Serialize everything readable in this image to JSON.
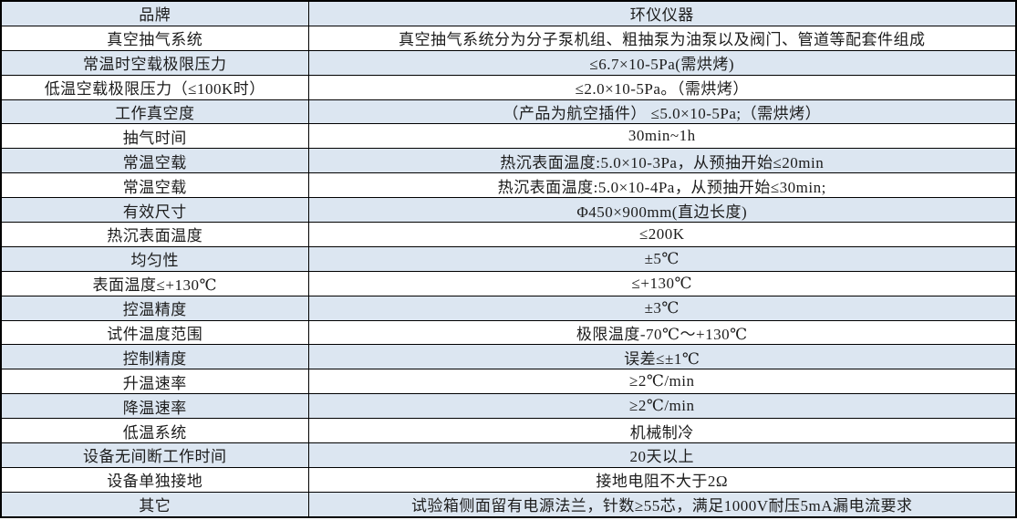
{
  "colors": {
    "row_shade": "#dce6f1",
    "row_plain": "#ffffff",
    "border": "#000000",
    "text": "#1c1c1c"
  },
  "table": {
    "columns": [
      "品牌",
      "环仪仪器"
    ],
    "rows": [
      {
        "label": "品牌",
        "value": "环仪仪器"
      },
      {
        "label": "真空抽气系统",
        "value": "真空抽气系统分为分子泵机组、粗抽泵为油泵以及阀门、管道等配套件组成"
      },
      {
        "label": "常温时空载极限压力",
        "value": "≤6.7×10-5Pa(需烘烤)"
      },
      {
        "label": "低温空载极限压力（≤100K时）",
        "value": "≤2.0×10-5Pa。（需烘烤）"
      },
      {
        "label": "工作真空度",
        "value": "（产品为航空插件） ≤5.0×10-5Pa;（需烘烤）"
      },
      {
        "label": "抽气时间",
        "value": "30min~1h"
      },
      {
        "label": "常温空载",
        "value": "热沉表面温度:5.0×10-3Pa，从预抽开始≤20min"
      },
      {
        "label": "常温空载",
        "value": "热沉表面温度:5.0×10-4Pa，从预抽开始≤30min;"
      },
      {
        "label": "有效尺寸",
        "value": "Φ450×900mm(直边长度)"
      },
      {
        "label": "热沉表面温度",
        "value": "≤200K"
      },
      {
        "label": "均匀性",
        "value": "±5℃"
      },
      {
        "label": "表面温度≤+130℃",
        "value": "≤+130℃"
      },
      {
        "label": "控温精度",
        "value": "±3℃"
      },
      {
        "label": "试件温度范围",
        "value": "极限温度-70℃～+130℃"
      },
      {
        "label": "控制精度",
        "value": "误差≤±1℃"
      },
      {
        "label": "升温速率",
        "value": "≥2℃/min"
      },
      {
        "label": "降温速率",
        "value": "≥2℃/min"
      },
      {
        "label": "低温系统",
        "value": "机械制冷"
      },
      {
        "label": "设备无间断工作时间",
        "value": "20天以上"
      },
      {
        "label": "设备单独接地",
        "value": "接地电阻不大于2Ω"
      },
      {
        "label": "其它",
        "value": "试验箱侧面留有电源法兰，针数≥55芯，满足1000V耐压5mA漏电流要求"
      }
    ]
  }
}
